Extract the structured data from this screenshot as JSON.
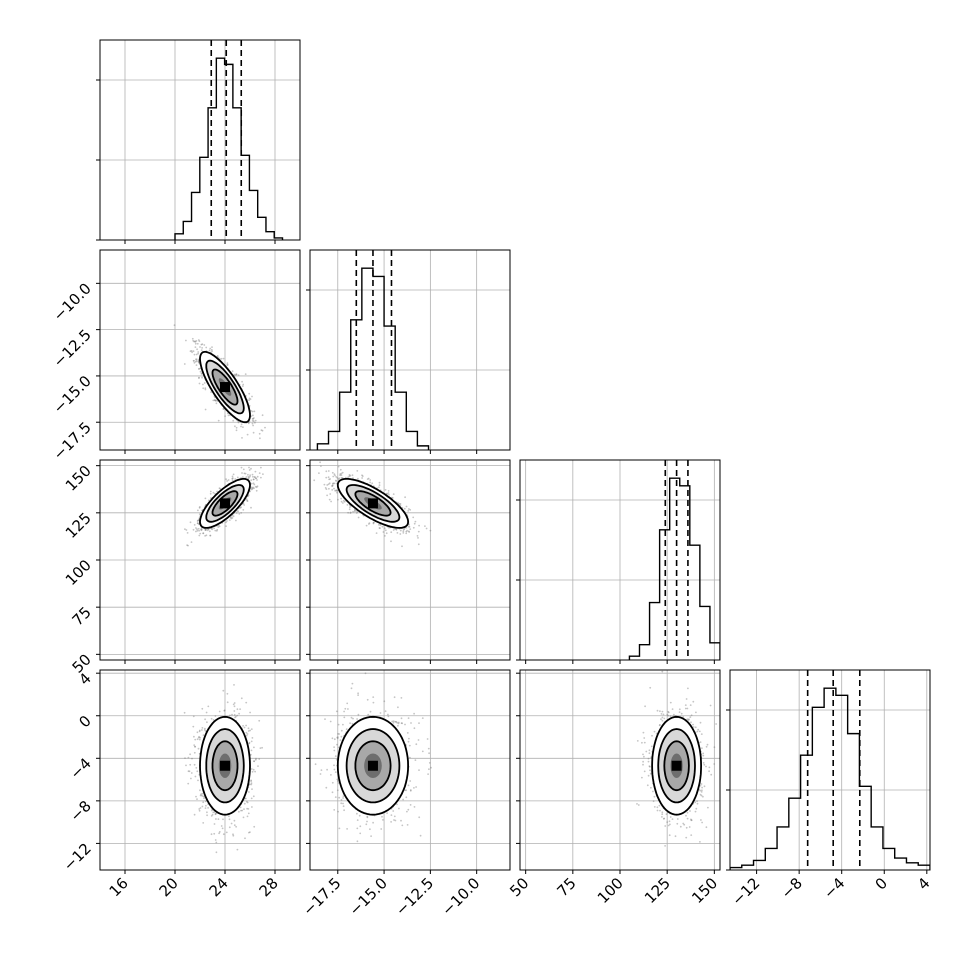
{
  "chart_data": {
    "type": "corner",
    "n_params": 4,
    "quantiles": [
      0.16,
      0.5,
      0.84
    ],
    "colors": {
      "hist": "#000000",
      "grid": "#b0b0b0",
      "points": "#7f7f7f",
      "contour_line": "#000000"
    },
    "params": [
      {
        "range": [
          14,
          30
        ],
        "ticks": [
          16,
          20,
          24,
          28
        ],
        "tick_labels": [
          "16",
          "20",
          "24",
          "28"
        ],
        "mean": 24.0,
        "sd": 1.0,
        "quantile_values": [
          22.9,
          24.1,
          25.3
        ],
        "hist": {
          "lo": 20.0,
          "hi": 28.6,
          "counts": [
            3,
            9,
            23,
            40,
            64,
            88,
            85,
            64,
            41,
            24,
            11,
            4,
            1
          ]
        }
      },
      {
        "range": [
          -19,
          -8.2
        ],
        "ticks": [
          -17.5,
          -15.0,
          -12.5,
          -10.0
        ],
        "tick_labels": [
          "−17.5",
          "−15.0",
          "−12.5",
          "−10.0"
        ],
        "mean": -15.6,
        "sd": 0.95,
        "quantile_values": [
          -16.5,
          -15.6,
          -14.6
        ],
        "hist": {
          "lo": -18.6,
          "hi": -12.6,
          "counts": [
            3,
            9,
            28,
            63,
            88,
            84,
            60,
            28,
            9,
            2
          ]
        }
      },
      {
        "range": [
          47,
          153
        ],
        "ticks": [
          50,
          75,
          100,
          125,
          150
        ],
        "tick_labels": [
          "50",
          "75",
          "100",
          "125",
          "150"
        ],
        "mean": 130,
        "sd": 6.5,
        "quantile_values": [
          124,
          130,
          136
        ],
        "hist": {
          "lo": 105,
          "hi": 153,
          "counts": [
            2,
            8,
            30,
            68,
            95,
            91,
            60,
            28,
            9
          ]
        }
      },
      {
        "range": [
          -14.5,
          4.3
        ],
        "ticks": [
          -12,
          -8,
          -4,
          0,
          4
        ],
        "tick_labels": [
          "−12",
          "−8",
          "−4",
          "0",
          "4"
        ],
        "mean": -4.7,
        "sd": 2.3,
        "quantile_values": [
          -7.2,
          -4.8,
          -2.3
        ],
        "hist": {
          "lo": -14.5,
          "hi": 4.3,
          "counts": [
            1,
            2,
            4,
            9,
            18,
            30,
            48,
            68,
            76,
            73,
            57,
            35,
            18,
            9,
            5,
            3,
            2
          ]
        }
      }
    ],
    "correlations": [
      {
        "i": 1,
        "j": 0,
        "rho": -0.8
      },
      {
        "i": 2,
        "j": 0,
        "rho": 0.75
      },
      {
        "i": 2,
        "j": 1,
        "rho": -0.75
      },
      {
        "i": 3,
        "j": 0,
        "rho": 0.0
      },
      {
        "i": 3,
        "j": 1,
        "rho": 0.0
      },
      {
        "i": 3,
        "j": 2,
        "rho": 0.0
      }
    ],
    "contour_levels_sigma": [
      0.5,
      1.0,
      1.5,
      2.0
    ],
    "title": "",
    "xlabel": "",
    "ylabel": "",
    "grid": true
  }
}
